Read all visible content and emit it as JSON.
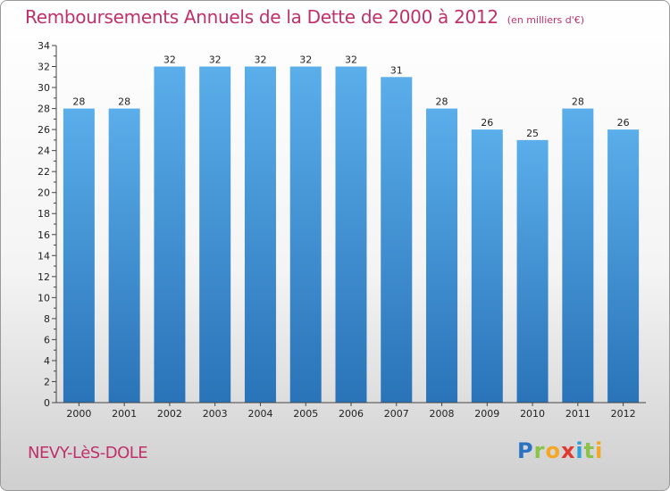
{
  "header": {
    "title": "Remboursements Annuels de la Dette de 2000 à 2012",
    "unit": "(en milliers d'€)"
  },
  "footer": {
    "commune": "NEVY-LèS-DOLE",
    "logo_letters": [
      {
        "ch": "P",
        "color": "#2a73c4"
      },
      {
        "ch": "r",
        "color": "#8bc34a"
      },
      {
        "ch": "o",
        "color": "#f5a623"
      },
      {
        "ch": "x",
        "color": "#e03a2f"
      },
      {
        "ch": "i",
        "color": "#2a9fd8"
      },
      {
        "ch": "t",
        "color": "#8bc34a"
      },
      {
        "ch": "i",
        "color": "#f5a623"
      }
    ]
  },
  "chart_data": {
    "type": "bar",
    "title": "Remboursements Annuels de la Dette de 2000 à 2012",
    "unit": "(en milliers d'€)",
    "categories": [
      "2000",
      "2001",
      "2002",
      "2003",
      "2004",
      "2005",
      "2006",
      "2007",
      "2008",
      "2009",
      "2010",
      "2011",
      "2012"
    ],
    "values": [
      28,
      28,
      32,
      32,
      32,
      32,
      32,
      31,
      28,
      26,
      25,
      28,
      26
    ],
    "ylim": [
      0,
      34
    ],
    "yticks": [
      0,
      2,
      4,
      6,
      8,
      10,
      12,
      14,
      16,
      18,
      20,
      22,
      24,
      26,
      28,
      30,
      32,
      34
    ],
    "grid": false,
    "colors": {
      "bar_top": "#5aaeea",
      "bar_bottom": "#2a73b8",
      "axis": "#444444"
    }
  }
}
